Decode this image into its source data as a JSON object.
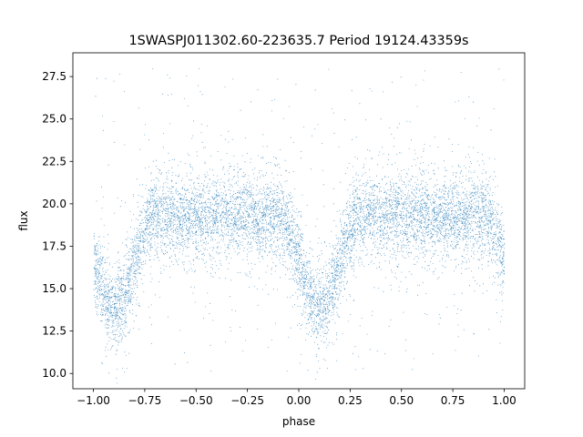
{
  "chart_data": {
    "type": "scatter",
    "title": "1SWASPJ011302.60-223635.7 Period 19124.43359s",
    "xlabel": "phase",
    "ylabel": "flux",
    "xlim": [
      -1.1,
      1.1
    ],
    "ylim": [
      9.1,
      28.9
    ],
    "xticks": [
      -1.0,
      -0.75,
      -0.5,
      -0.25,
      0.0,
      0.25,
      0.5,
      0.75,
      1.0
    ],
    "xtick_labels": [
      "−1.00",
      "−0.75",
      "−0.50",
      "−0.25",
      "0.00",
      "0.25",
      "0.50",
      "0.75",
      "1.00"
    ],
    "yticks": [
      10.0,
      12.5,
      15.0,
      17.5,
      20.0,
      22.5,
      25.0,
      27.5
    ],
    "ytick_labels": [
      "10.0",
      "12.5",
      "15.0",
      "17.5",
      "20.0",
      "22.5",
      "25.0",
      "27.5"
    ],
    "grid": false,
    "marker_color": "#1f77b4",
    "series_description": {
      "phase_range": [
        -1.0,
        1.0
      ],
      "baseline_flux": 19.3,
      "baseline_spread": 1.1,
      "eclipse_centers": [
        -0.9,
        0.1
      ],
      "eclipse_min_flux": 13.9,
      "eclipse_half_width": 0.2,
      "outlier_flux_range": [
        10.0,
        28.0
      ]
    }
  }
}
